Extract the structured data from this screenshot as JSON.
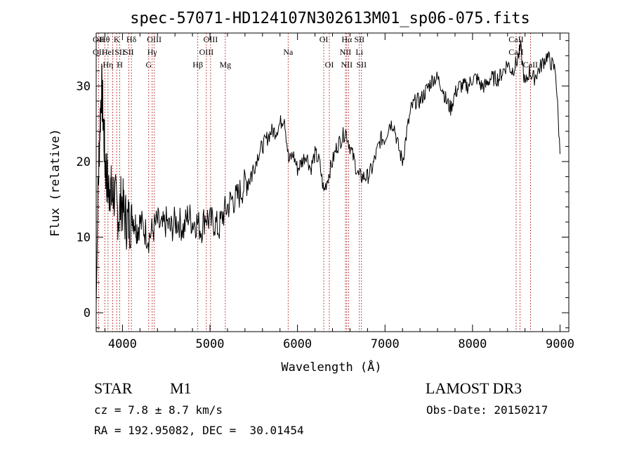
{
  "chart_data": {
    "type": "line",
    "title": "spec-57071-HD124107N302613M01_sp06-075.fits",
    "xlabel": "Wavelength (Å)",
    "ylabel": "Flux (relative)",
    "xlim": [
      3700,
      9100
    ],
    "ylim": [
      -2.5,
      37
    ],
    "x_ticks": [
      4000,
      5000,
      6000,
      7000,
      8000,
      9000
    ],
    "x_tick_labels": [
      "4000",
      "5000",
      "6000",
      "7000",
      "8000",
      "9000"
    ],
    "y_ticks": [
      0,
      10,
      20,
      30
    ],
    "y_tick_labels": [
      "0",
      "10",
      "20",
      "30"
    ],
    "grid": false,
    "series": [
      {
        "x": [
          3700,
          3720,
          3740,
          3760,
          3780,
          3800,
          3820,
          3840,
          3860,
          3880,
          3900,
          3930,
          3960,
          3990,
          4020,
          4050,
          4080,
          4110,
          4140,
          4170,
          4200,
          4250,
          4300,
          4350,
          4400,
          4450,
          4500,
          4550,
          4600,
          4650,
          4700,
          4750,
          4800,
          4850,
          4900,
          4950,
          5000,
          5050,
          5100,
          5150,
          5200,
          5250,
          5300,
          5350,
          5400,
          5450,
          5500,
          5550,
          5600,
          5650,
          5700,
          5750,
          5800,
          5850,
          5900,
          5950,
          6000,
          6050,
          6100,
          6150,
          6200,
          6250,
          6300,
          6350,
          6400,
          6450,
          6500,
          6550,
          6600,
          6650,
          6700,
          6750,
          6800,
          6850,
          6900,
          6950,
          7000,
          7050,
          7100,
          7150,
          7200,
          7250,
          7300,
          7350,
          7400,
          7450,
          7500,
          7550,
          7600,
          7650,
          7700,
          7750,
          7800,
          7850,
          7900,
          7950,
          8000,
          8050,
          8100,
          8150,
          8200,
          8250,
          8300,
          8350,
          8400,
          8450,
          8500,
          8550,
          8600,
          8650,
          8700,
          8750,
          8800,
          8850,
          8900,
          8950,
          9000
        ],
        "y": [
          1,
          15,
          24,
          30,
          26,
          20,
          18,
          16,
          17,
          15,
          16,
          14,
          13,
          15,
          13,
          12,
          12,
          13,
          12,
          11,
          12,
          11,
          10,
          11,
          12,
          11,
          12,
          11,
          12,
          12,
          11,
          13,
          12,
          12,
          11,
          13,
          12,
          12,
          11,
          13,
          14,
          15,
          15,
          16,
          17,
          18,
          19,
          21,
          22,
          23,
          24,
          24,
          25,
          26,
          20,
          21,
          19,
          20,
          21,
          19,
          21,
          20,
          16,
          18,
          20,
          22,
          23,
          24,
          22,
          20,
          18,
          18,
          18,
          19,
          21,
          23,
          23,
          25,
          25,
          22,
          20,
          24,
          27,
          28,
          28,
          29,
          30,
          31,
          31,
          30,
          28,
          27,
          29,
          30,
          30,
          30,
          31,
          31,
          30,
          30,
          31,
          31,
          31,
          32,
          33,
          32,
          33,
          35,
          30,
          32,
          31,
          32,
          33,
          34,
          33,
          32,
          21
        ]
      }
    ],
    "line_labels": [
      {
        "wl": 3727,
        "rows": [
          [
            "OII"
          ],
          [
            "OII"
          ]
        ]
      },
      {
        "wl": 3798,
        "rows": [
          [
            "Hθ"
          ],
          [],
          []
        ]
      },
      {
        "wl": 3835,
        "rows": [
          [],
          [
            "HeI"
          ],
          [
            "Hη"
          ]
        ]
      },
      {
        "wl": 3889,
        "rows": [
          [],
          [],
          []
        ]
      },
      {
        "wl": 3934,
        "rows": [
          [
            "K"
          ],
          [],
          []
        ]
      },
      {
        "wl": 3969,
        "rows": [
          [],
          [
            "SII"
          ],
          [
            "H"
          ]
        ]
      },
      {
        "wl": 4072,
        "rows": [
          [],
          [
            "SII"
          ],
          []
        ]
      },
      {
        "wl": 4102,
        "rows": [
          [
            "Hδ"
          ],
          [],
          []
        ]
      },
      {
        "wl": 4300,
        "rows": [
          [],
          [],
          [
            "G"
          ]
        ]
      },
      {
        "wl": 4340,
        "rows": [
          [],
          [
            "Hγ"
          ],
          []
        ]
      },
      {
        "wl": 4363,
        "rows": [
          [
            "OIII"
          ],
          [],
          []
        ]
      },
      {
        "wl": 4861,
        "rows": [
          [],
          [],
          [
            "Hβ"
          ]
        ]
      },
      {
        "wl": 4959,
        "rows": [
          [],
          [
            "OIII"
          ],
          []
        ]
      },
      {
        "wl": 5007,
        "rows": [
          [
            "OIII"
          ],
          [],
          []
        ]
      },
      {
        "wl": 5175,
        "rows": [
          [],
          [],
          [
            "Mg"
          ]
        ]
      },
      {
        "wl": 5893,
        "rows": [
          [],
          [
            "Na"
          ],
          []
        ]
      },
      {
        "wl": 6300,
        "rows": [
          [
            "OI"
          ],
          [],
          []
        ]
      },
      {
        "wl": 6364,
        "rows": [
          [],
          [],
          [
            "OI"
          ]
        ]
      },
      {
        "wl": 6548,
        "rows": [
          [],
          [
            "NII"
          ],
          []
        ]
      },
      {
        "wl": 6563,
        "rows": [
          [
            "Hα"
          ],
          [],
          [
            "NII"
          ]
        ]
      },
      {
        "wl": 6583,
        "rows": [
          [],
          [],
          []
        ]
      },
      {
        "wl": 6707,
        "rows": [
          [
            "SII"
          ],
          [
            "Li"
          ],
          []
        ]
      },
      {
        "wl": 6731,
        "rows": [
          [],
          [],
          [
            "SII"
          ]
        ]
      },
      {
        "wl": 8498,
        "rows": [
          [
            "CaII"
          ],
          [
            "CaII"
          ],
          []
        ]
      },
      {
        "wl": 8542,
        "rows": [
          [],
          [],
          []
        ]
      },
      {
        "wl": 8662,
        "rows": [
          [],
          [],
          [
            "CaII"
          ]
        ]
      }
    ],
    "info": {
      "class_label": "STAR",
      "subclass": "M1",
      "survey": "LAMOST DR3",
      "cz_text": "cz = 7.8 ± 8.7 km/s",
      "obs_date_text": "Obs-Date: 20150217",
      "coords_text": "RA = 192.95082, DEC =  30.01454"
    }
  }
}
